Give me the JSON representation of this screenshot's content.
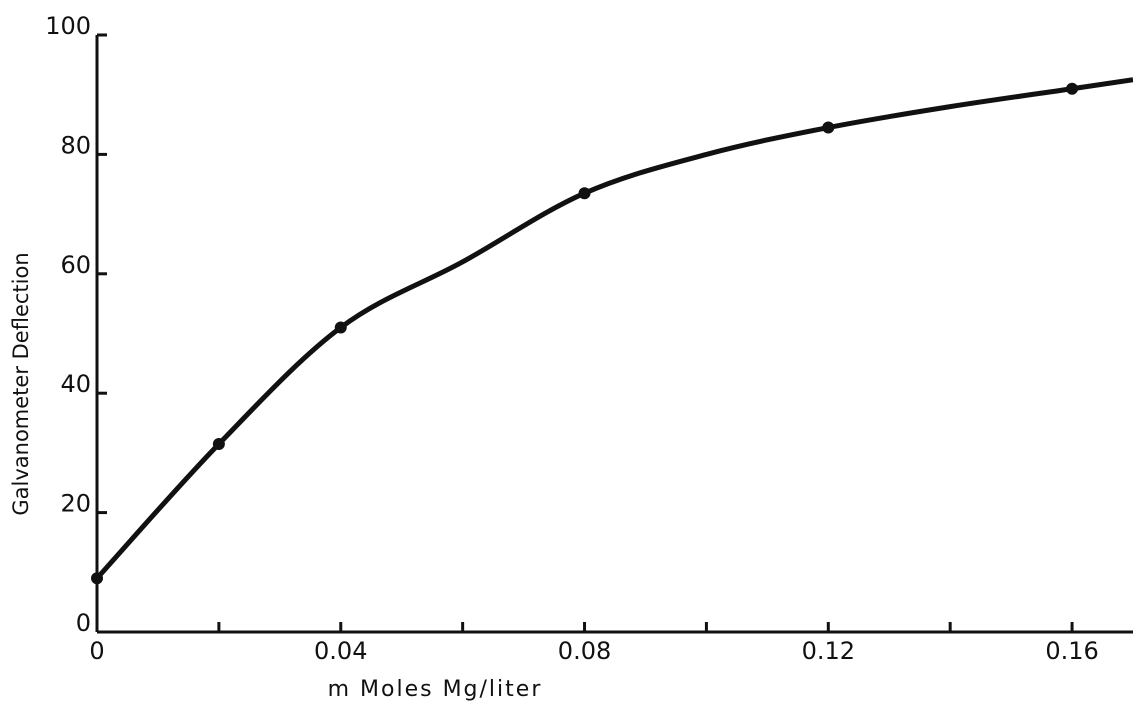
{
  "chart_data": {
    "type": "line",
    "x_label": "m Moles Mg/liter",
    "y_label": "Galvanometer Deflection",
    "x": [
      0,
      0.02,
      0.04,
      0.08,
      0.12,
      0.16
    ],
    "values": [
      9,
      31.5,
      51,
      73.5,
      84.5,
      91
    ],
    "curve": {
      "x": [
        0,
        0.02,
        0.04,
        0.06,
        0.08,
        0.1,
        0.12,
        0.14,
        0.16,
        0.17
      ],
      "values": [
        9,
        31.5,
        51,
        62,
        73.5,
        80,
        84.5,
        88,
        91,
        92.5
      ]
    },
    "color": "#111111",
    "xlim": [
      0,
      0.17
    ],
    "ylim": [
      0,
      100
    ],
    "xticks": [
      0,
      0.04,
      0.08,
      0.12,
      0.16
    ],
    "xminorticks": [
      0.02,
      0.06,
      0.1,
      0.14
    ],
    "yticks": [
      0,
      20,
      40,
      60,
      80,
      100
    ]
  }
}
